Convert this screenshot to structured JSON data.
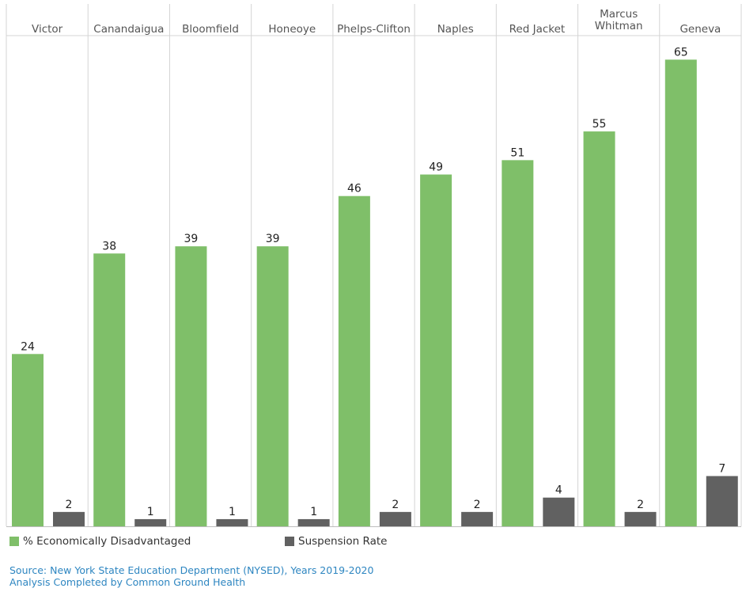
{
  "chart_data": {
    "type": "bar",
    "categories": [
      "Victor",
      "Canandaigua",
      "Bloomfield",
      "Honeoye",
      "Phelps-Clifton",
      "Naples",
      "Red Jacket",
      "Marcus Whitman",
      "Geneva"
    ],
    "category_lines": [
      [
        "Victor"
      ],
      [
        "Canandaigua"
      ],
      [
        "Bloomfield"
      ],
      [
        "Honeoye"
      ],
      [
        "Phelps-Clifton"
      ],
      [
        "Naples"
      ],
      [
        "Red Jacket"
      ],
      [
        "Marcus",
        "Whitman"
      ],
      [
        "Geneva"
      ]
    ],
    "series": [
      {
        "name": "% Economically Disadvantaged",
        "color": "#7fbf69",
        "values": [
          24,
          38,
          39,
          39,
          46,
          49,
          51,
          55,
          65
        ]
      },
      {
        "name": "Suspension Rate",
        "color": "#616161",
        "values": [
          2,
          1,
          1,
          1,
          2,
          2,
          4,
          2,
          7
        ]
      }
    ],
    "ylim": [
      0,
      70
    ],
    "grid": false,
    "legend_position": "bottom-left",
    "data_labels": true
  },
  "footer": {
    "source": "Source: New York State Education Department (NYSED), Years 2019-2020",
    "analysis": "Analysis Completed by Common Ground Health"
  }
}
